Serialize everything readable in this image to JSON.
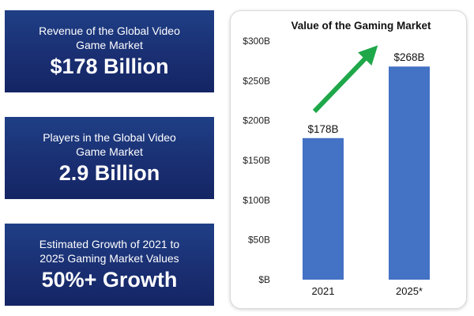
{
  "stats": [
    {
      "caption": "Revenue of the Global Video Game Market",
      "value": "$178 Billion"
    },
    {
      "caption": "Players in the Global Video Game Market",
      "value": "2.9 Billion"
    },
    {
      "caption": "Estimated Growth of 2021 to 2025 Gaming Market Values",
      "value": "50%+ Growth"
    }
  ],
  "colors": {
    "card_background": "#1a2f72",
    "bar": "#4472c4",
    "arrow": "#1fa84a"
  },
  "chart_data": {
    "type": "bar",
    "title": "Value of the Gaming Market",
    "categories": [
      "2021",
      "2025*"
    ],
    "values": [
      178,
      268
    ],
    "data_labels": [
      "$178B",
      "$268B"
    ],
    "ylim": [
      0,
      300
    ],
    "yticks": [
      "$B",
      "$50B",
      "$100B",
      "$150B",
      "$200B",
      "$250B",
      "$300B"
    ],
    "grid": false,
    "annotations": [
      "green-upward-arrow"
    ]
  }
}
